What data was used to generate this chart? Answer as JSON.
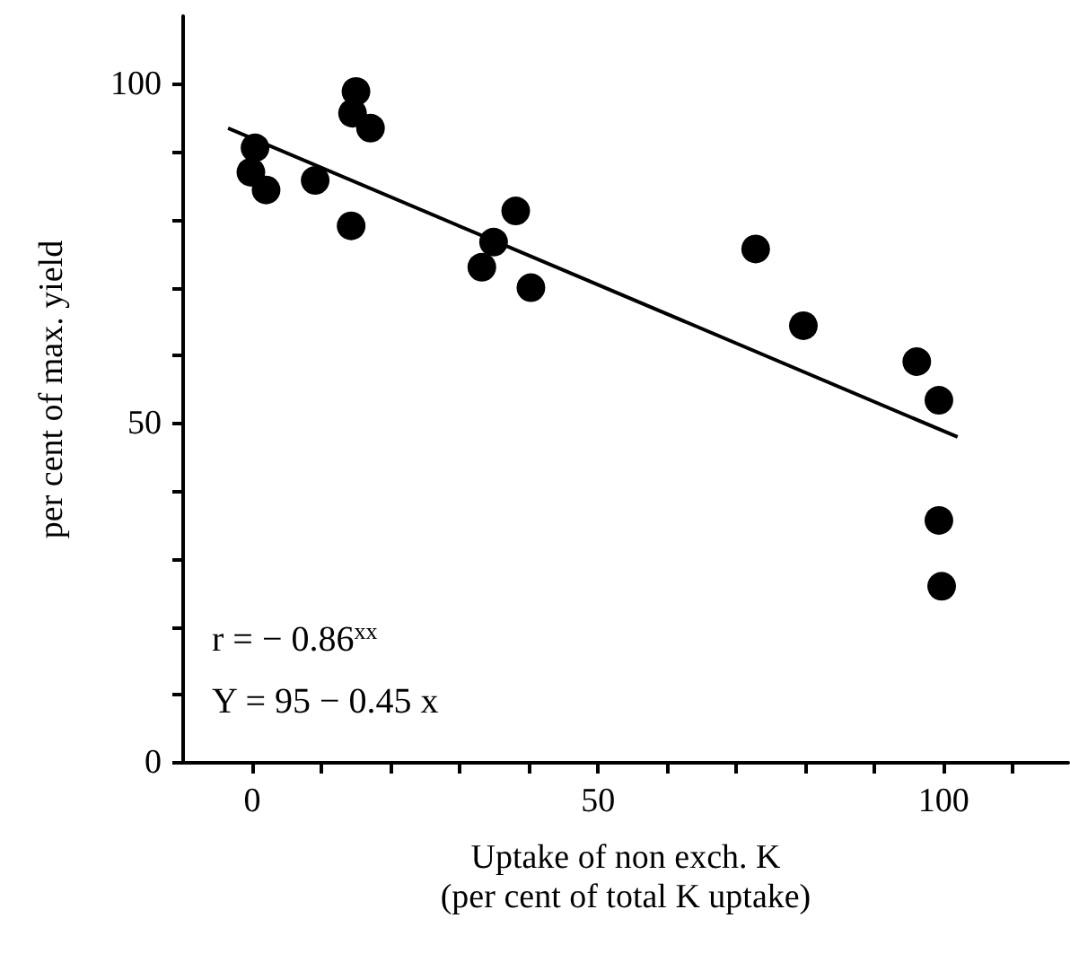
{
  "chart_data": {
    "type": "scatter",
    "xlabel": "Uptake of non exch. K\n(per cent of total K uptake)",
    "ylabel": "per cent of max. yield",
    "annotations": [
      "r = − 0.86$^{xx}$",
      "Y = 95 − 0.45 x"
    ],
    "series": [
      {
        "color": "#000000",
        "marker": "circle",
        "x": [
          0.4,
          -0.2,
          2,
          9.1,
          15,
          14.5,
          17.1,
          14.3,
          38.1,
          34.9,
          33.2,
          40.3,
          72.8,
          79.7,
          96.1,
          99.3,
          99.3,
          99.7
        ],
        "values": [
          90.6,
          87,
          84.4,
          85.8,
          98.9,
          95.7,
          93.5,
          79.1,
          81.3,
          76.7,
          73,
          70,
          75.7,
          64.4,
          59.1,
          53.4,
          35.7,
          26
        ]
      },
      {
        "type": "line",
        "color": "#000000",
        "marker": "none",
        "line_style": "solid",
        "x": [
          -3.5,
          102
        ],
        "values": [
          93.5,
          48
        ]
      }
    ],
    "xlim": [
      -10,
      118
    ],
    "xticks": [
      0,
      {
        "value": 10,
        "label": null
      },
      {
        "value": 20,
        "label": null
      },
      {
        "value": 30,
        "label": null
      },
      {
        "value": 40,
        "label": null
      },
      50,
      {
        "value": 60,
        "label": null
      },
      {
        "value": 70,
        "label": null
      },
      {
        "value": 80,
        "label": null
      },
      {
        "value": 90,
        "label": null
      },
      100,
      {
        "value": 110,
        "label": null
      }
    ],
    "ylim": [
      0,
      110
    ],
    "yticks": [
      0,
      {
        "value": 10,
        "label": null
      },
      {
        "value": 20,
        "label": null
      },
      {
        "value": 30,
        "label": null
      },
      {
        "value": 40,
        "label": null
      },
      50,
      {
        "value": 60,
        "label": null
      },
      {
        "value": 70,
        "label": null
      },
      {
        "value": 80,
        "label": null
      },
      {
        "value": 90,
        "label": null
      },
      100
    ],
    "grid": false
  }
}
